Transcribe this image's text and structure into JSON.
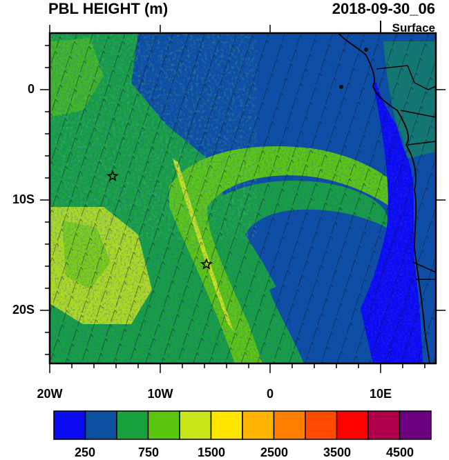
{
  "title": "PBL HEIGHT (m)",
  "timestamp": "2018-09-30_06",
  "level": "Surface",
  "map": {
    "lon_range": [
      -20,
      15
    ],
    "lat_range": [
      -25,
      5
    ],
    "x_ticks": [
      "20W",
      "10W",
      "0",
      "10E"
    ],
    "y_ticks": [
      "0",
      "10S",
      "20S"
    ],
    "markers": [
      {
        "name": "star-marker-1",
        "lon": -14.3,
        "lat": -8.0
      },
      {
        "name": "star-marker-2",
        "lon": -5.8,
        "lat": -16.0
      }
    ]
  },
  "colorbar": {
    "colors": [
      "#0b0bf0",
      "#0b4f9e",
      "#17a13d",
      "#5cc70f",
      "#c8e61a",
      "#ffe600",
      "#ffb400",
      "#ff8000",
      "#ff4a00",
      "#ff0000",
      "#b0004b",
      "#6b0080"
    ],
    "labels": [
      "250",
      "750",
      "1500",
      "2500",
      "3500",
      "4500"
    ]
  }
}
